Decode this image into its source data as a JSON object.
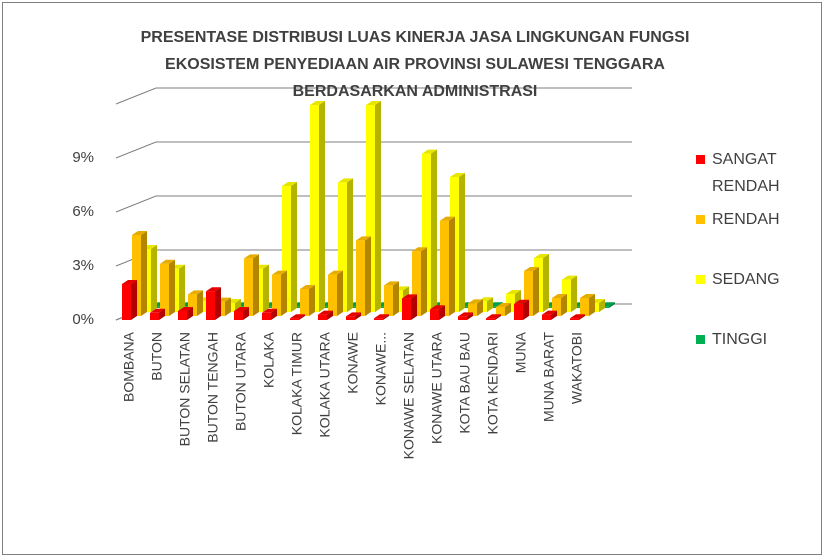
{
  "chart_data": {
    "type": "bar3d",
    "title": "PRESENTASE DISTRIBUSI LUAS KINERJA JASA LINGKUNGAN FUNGSI EKOSISTEM PENYEDIAAN AIR PROVINSI SULAWESI TENGGARA  BERDASARKAN ADMINISTRASI",
    "categories": [
      "BOMBANA",
      "BUTON",
      "BUTON SELATAN",
      "BUTON TENGAH",
      "BUTON UTARA",
      "KOLAKA",
      "KOLAKA TIMUR",
      "KOLAKA UTARA",
      "KONAWE",
      "KONAWE...",
      "KONAWE SELATAN",
      "KONAWE UTARA",
      "KOTA BAU BAU",
      "KOTA KENDARI",
      "MUNA",
      "MUNA BARAT",
      "WAKATOBI"
    ],
    "series": [
      {
        "name": "SANGAT RENDAH",
        "color": "#ff0000",
        "values": [
          2.0,
          0.4,
          0.5,
          1.6,
          0.5,
          0.4,
          0.1,
          0.3,
          0.2,
          0.1,
          1.2,
          0.6,
          0.2,
          0.1,
          0.9,
          0.3,
          0.1
        ]
      },
      {
        "name": "RENDAH",
        "color": "#ffc000",
        "values": [
          4.5,
          2.9,
          1.2,
          0.8,
          3.2,
          2.3,
          1.5,
          2.3,
          4.2,
          1.7,
          3.6,
          5.3,
          0.7,
          0.5,
          2.5,
          1.0,
          1.0
        ]
      },
      {
        "name": "SEDANG",
        "color": "#ffff00",
        "values": [
          3.5,
          2.4,
          0.6,
          0.5,
          2.4,
          7.0,
          11.5,
          7.2,
          11.5,
          1.2,
          8.8,
          7.5,
          0.6,
          1.0,
          3.0,
          1.8,
          0.5
        ]
      },
      {
        "name": "TINGGI",
        "color": "#00b050",
        "values": [
          0.1,
          0.1,
          0.1,
          0.1,
          0.1,
          0.1,
          0.1,
          0.1,
          0.1,
          0.1,
          0.1,
          0.1,
          0.1,
          0.1,
          0.1,
          0.1,
          0.1
        ]
      }
    ],
    "ylim": [
      0,
      12
    ],
    "yticks": [
      {
        "value": 0,
        "label": "0%"
      },
      {
        "value": 3,
        "label": "3%"
      },
      {
        "value": 6,
        "label": "6%"
      },
      {
        "value": 9,
        "label": "9%"
      }
    ],
    "grid": true
  }
}
